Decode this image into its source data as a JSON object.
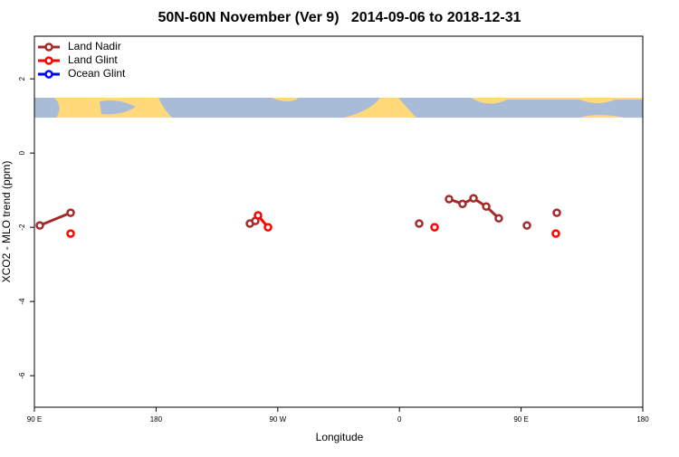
{
  "chart_data": {
    "type": "line",
    "title": "50N-60N November (Ver 9)   2014-09-06 to 2018-12-31",
    "xlabel": "Longitude",
    "ylabel": "XCO2 - MLO trend (ppm)",
    "xlim": [
      90,
      540
    ],
    "xticks": [
      {
        "value": 90,
        "label": "90 E"
      },
      180,
      {
        "value": 270,
        "label": "90 W"
      },
      {
        "value": 360,
        "label": "0"
      },
      {
        "value": 450,
        "label": "90 E"
      },
      {
        "value": 540,
        "label": "180"
      }
    ],
    "ylim": [
      -6.85,
      3.15
    ],
    "yticks": [
      2,
      0,
      -2,
      -4,
      -6
    ],
    "legend": "top-left",
    "series": [
      {
        "name": "Land Nadir",
        "color": "#a52a2a",
        "x": [
          94.0,
          116.8,
          null,
          249.4,
          253.4,
          null,
          374.6,
          null,
          396.7,
          406.7,
          414.8,
          424.2,
          433.5,
          null,
          454.3,
          null,
          476.4
        ],
        "values": [
          -1.95,
          -1.61,
          null,
          -1.9,
          -1.83,
          null,
          -1.9,
          null,
          -1.24,
          -1.37,
          -1.22,
          -1.44,
          -1.76,
          null,
          -1.95,
          null,
          -1.61
        ]
      },
      {
        "name": "Land Glint",
        "color": "#ff0000",
        "x": [
          116.8,
          null,
          255.4,
          262.8,
          null,
          386.0,
          null,
          475.7
        ],
        "values": [
          -2.17,
          null,
          -1.68,
          -2.0,
          null,
          -2.0,
          null,
          -2.17
        ]
      },
      {
        "name": "Ocean Glint",
        "color": "#0000ff",
        "x": [],
        "values": []
      }
    ]
  }
}
